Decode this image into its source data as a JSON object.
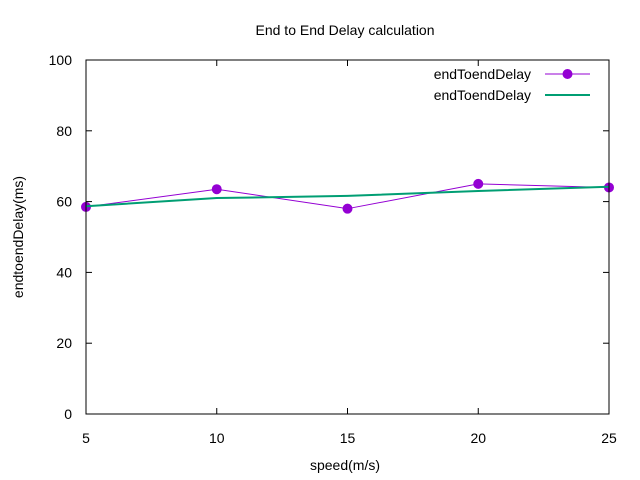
{
  "chart_data": {
    "type": "line",
    "title": "End to End Delay calculation",
    "xlabel": "speed(m/s)",
    "ylabel": "endtoendDelay(ms)",
    "xlim": [
      5,
      25
    ],
    "ylim": [
      0,
      100
    ],
    "xticks": [
      "5",
      "10",
      "15",
      "20",
      "25"
    ],
    "yticks": [
      "0",
      "20",
      "40",
      "60",
      "80",
      "100"
    ],
    "xtick_values": [
      5,
      10,
      15,
      20,
      25
    ],
    "ytick_values": [
      0,
      20,
      40,
      60,
      80,
      100
    ],
    "grid": false,
    "legend_position": "top-right",
    "series": [
      {
        "name": "endToendDelay",
        "color": "#9400d3",
        "marker": "circle",
        "x": [
          5,
          10,
          15,
          20,
          25
        ],
        "y": [
          58.5,
          63.5,
          58.0,
          65.0,
          64.0
        ]
      },
      {
        "name": "endToendDelay",
        "color": "#009e73",
        "marker": "none",
        "x": [
          5,
          10,
          15,
          20,
          25
        ],
        "y": [
          58.7,
          61.0,
          61.6,
          63.0,
          64.2
        ]
      }
    ]
  }
}
